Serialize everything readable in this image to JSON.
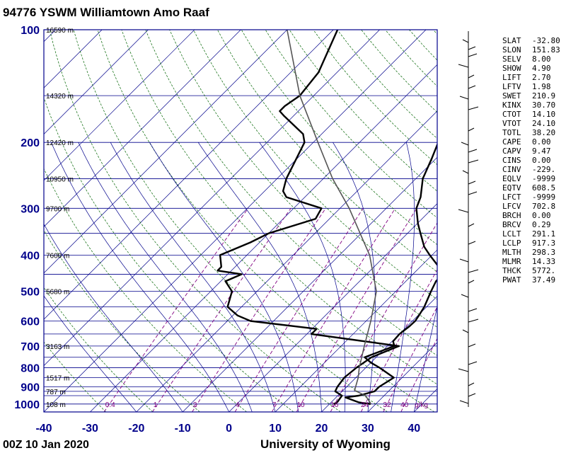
{
  "header": {
    "title": "94776 YSWM Williamtown Amo Raaf"
  },
  "footer": {
    "time": "00Z 10 Jan 2020",
    "source": "University of Wyoming"
  },
  "chart_data": {
    "type": "line",
    "title": "94776 YSWM Williamtown Amo Raaf",
    "xlabel": "",
    "ylabel": "",
    "xlim": [
      -40,
      45
    ],
    "ylim": [
      1050,
      100
    ],
    "x_ticks": [
      -40,
      -30,
      -20,
      -10,
      0,
      10,
      20,
      30,
      40
    ],
    "p_ticks": [
      100,
      200,
      300,
      400,
      500,
      600,
      700,
      800,
      900,
      1000
    ],
    "isobars": [
      100,
      150,
      200,
      250,
      300,
      350,
      400,
      450,
      500,
      550,
      600,
      650,
      700,
      750,
      800,
      850,
      900,
      925,
      950,
      1000,
      1050
    ],
    "height_labels": [
      {
        "p": 100,
        "text": "16590 m"
      },
      {
        "p": 150,
        "text": "14320 m"
      },
      {
        "p": 200,
        "text": "12420 m"
      },
      {
        "p": 250,
        "text": "10950 m"
      },
      {
        "p": 300,
        "text": "9700 m"
      },
      {
        "p": 400,
        "text": "7600 m"
      },
      {
        "p": 500,
        "text": "5680 m"
      },
      {
        "p": 700,
        "text": "3163 m"
      },
      {
        "p": 850,
        "text": "1517 m"
      },
      {
        "p": 925,
        "text": "787 m"
      },
      {
        "p": 1000,
        "text": "108 m"
      }
    ],
    "mixing_ratio_labels": [
      "0.4",
      "1",
      "2",
      "4",
      "7",
      "10",
      "16",
      "24",
      "32",
      "40",
      "g/kg"
    ],
    "series": [
      {
        "role": "temperature",
        "points": [
          [
            1000,
            28.9
          ],
          [
            990,
            26
          ],
          [
            960,
            22
          ],
          [
            950,
            24.5
          ],
          [
            925,
            27
          ],
          [
            900,
            27
          ],
          [
            850,
            28.2
          ],
          [
            800,
            23
          ],
          [
            775,
            20
          ],
          [
            750,
            17.5
          ],
          [
            700,
            21.5
          ],
          [
            680,
            20.2
          ],
          [
            650,
            20
          ],
          [
            620,
            20.5
          ],
          [
            600,
            20.6
          ],
          [
            580,
            20.2
          ],
          [
            550,
            19.5
          ],
          [
            500,
            17.6
          ],
          [
            470,
            16.5
          ],
          [
            450,
            16.5
          ],
          [
            440,
            15.6
          ],
          [
            430,
            14
          ],
          [
            400,
            9.5
          ],
          [
            380,
            6.5
          ],
          [
            350,
            2.8
          ],
          [
            330,
            0.2
          ],
          [
            300,
            -3.5
          ],
          [
            280,
            -5
          ],
          [
            250,
            -8.5
          ],
          [
            220,
            -11
          ],
          [
            200,
            -13
          ],
          [
            190,
            -14
          ],
          [
            180,
            -15
          ],
          [
            170,
            -15.8
          ],
          [
            165,
            -15.5
          ],
          [
            160,
            -16
          ],
          [
            150,
            -17
          ],
          [
            130,
            -20
          ],
          [
            110,
            -25
          ],
          [
            100,
            -27.6
          ]
        ]
      },
      {
        "role": "dewpoint",
        "points": [
          [
            1000,
            20.9
          ],
          [
            990,
            21.3
          ],
          [
            950,
            20.9
          ],
          [
            925,
            18.5
          ],
          [
            900,
            18
          ],
          [
            850,
            17.5
          ],
          [
            800,
            18
          ],
          [
            750,
            19
          ],
          [
            700,
            22.5
          ],
          [
            680,
            14
          ],
          [
            650,
            1
          ],
          [
            630,
            1
          ],
          [
            600,
            -15
          ],
          [
            580,
            -19
          ],
          [
            550,
            -23
          ],
          [
            500,
            -25.4
          ],
          [
            470,
            -29
          ],
          [
            450,
            -27
          ],
          [
            440,
            -33
          ],
          [
            430,
            -33
          ],
          [
            400,
            -35.8
          ],
          [
            370,
            -32
          ],
          [
            350,
            -30
          ],
          [
            320,
            -23
          ],
          [
            300,
            -24
          ],
          [
            280,
            -34
          ],
          [
            270,
            -36
          ],
          [
            250,
            -38
          ],
          [
            200,
            -41.9
          ],
          [
            190,
            -44
          ],
          [
            170,
            -52
          ],
          [
            165,
            -54
          ],
          [
            160,
            -54
          ],
          [
            150,
            -53
          ],
          [
            130,
            -54
          ],
          [
            100,
            -59.1
          ]
        ]
      },
      {
        "role": "parcel",
        "points": [
          [
            1000,
            29
          ],
          [
            950,
            26
          ],
          [
            920,
            22.5
          ],
          [
            850,
            20.5
          ],
          [
            800,
            18.6
          ],
          [
            700,
            15
          ],
          [
            600,
            11
          ],
          [
            500,
            5.8
          ],
          [
            400,
            -3.5
          ],
          [
            300,
            -18
          ],
          [
            250,
            -28
          ],
          [
            200,
            -39
          ],
          [
            150,
            -53
          ],
          [
            100,
            -70
          ]
        ]
      }
    ]
  },
  "indices": [
    {
      "name": "SLAT",
      "value": "-32.80"
    },
    {
      "name": "SLON",
      "value": "151.83"
    },
    {
      "name": "SELV",
      "value": "8.00"
    },
    {
      "name": "SHOW",
      "value": "4.90"
    },
    {
      "name": "LIFT",
      "value": "2.70"
    },
    {
      "name": "LFTV",
      "value": "1.98"
    },
    {
      "name": "SWET",
      "value": "210.9"
    },
    {
      "name": "KINX",
      "value": "30.70"
    },
    {
      "name": "CTOT",
      "value": "14.10"
    },
    {
      "name": "VTOT",
      "value": "24.10"
    },
    {
      "name": "TOTL",
      "value": "38.20"
    },
    {
      "name": "CAPE",
      "value": "0.00"
    },
    {
      "name": "CAPV",
      "value": "9.47"
    },
    {
      "name": "CINS",
      "value": "0.00"
    },
    {
      "name": "CINV",
      "value": "-229."
    },
    {
      "name": "EQLV",
      "value": "-9999"
    },
    {
      "name": "EQTV",
      "value": "608.5"
    },
    {
      "name": "LFCT",
      "value": "-9999"
    },
    {
      "name": "LFCV",
      "value": "702.8"
    },
    {
      "name": "BRCH",
      "value": "0.00"
    },
    {
      "name": "BRCV",
      "value": "0.29"
    },
    {
      "name": "LCLT",
      "value": "291.1"
    },
    {
      "name": "LCLP",
      "value": "917.3"
    },
    {
      "name": "MLTH",
      "value": "298.3"
    },
    {
      "name": "MLMR",
      "value": "14.33"
    },
    {
      "name": "THCK",
      "value": "5772."
    },
    {
      "name": "PWAT",
      "value": "37.49"
    }
  ],
  "colors": {
    "isobar": "#00008b",
    "isotherm": "#00008b",
    "dry_adiabat": "#006400",
    "moist_adiabat": "#00008b",
    "mixing_ratio": "#800080",
    "profile": "#000000",
    "parcel": "#555555"
  }
}
